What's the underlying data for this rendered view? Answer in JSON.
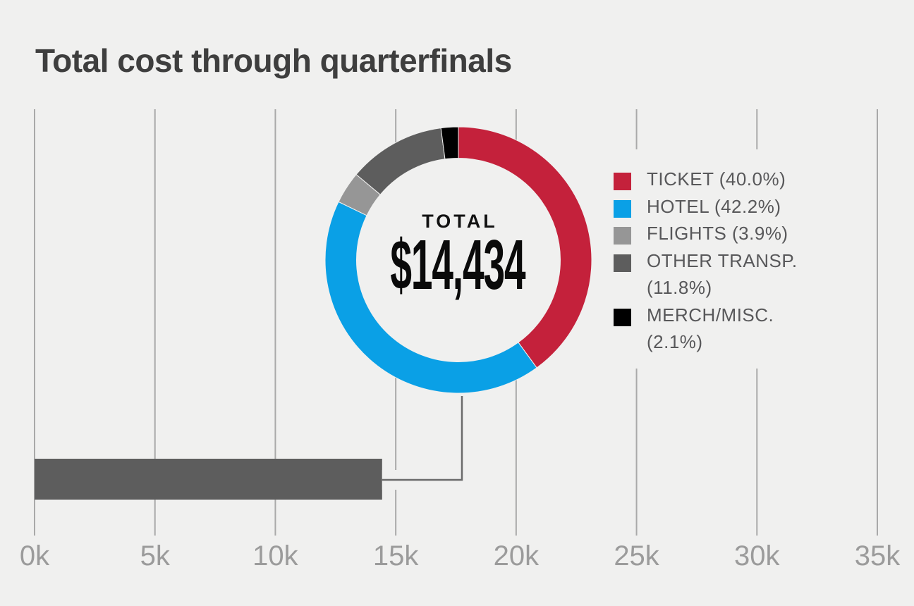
{
  "header": {
    "title": "Total cost through quarterfinals"
  },
  "colors": {
    "background": "#f0f0ef",
    "title_text": "#3e3e3e",
    "gridline": "#a9a9a9",
    "axis_label": "#9b9b9b",
    "legend_text": "#58585a",
    "center_text": "#0a0a0a",
    "connector": "#6b6b6b"
  },
  "chart_data": {
    "type": "pie",
    "subtype": "donut-with-total-bar",
    "title": "Total cost through quarterfinals",
    "donut": {
      "center_label": "TOTAL",
      "center_value": "$14,434",
      "total_value": 14434,
      "direction": "clockwise",
      "start_at": "12-oclock",
      "slices": [
        {
          "label": "TICKET",
          "pct": 40.0,
          "color": "#c4213b"
        },
        {
          "label": "HOTEL",
          "pct": 42.2,
          "color": "#0aa0e6"
        },
        {
          "label": "FLIGHTS",
          "pct": 3.9,
          "color": "#969696"
        },
        {
          "label": "OTHER TRANSP.",
          "pct": 11.8,
          "color": "#5d5d5d"
        },
        {
          "label": "MERCH/MISC.",
          "pct": 2.1,
          "color": "#000000"
        }
      ]
    },
    "bar": {
      "label": "Total cost",
      "value": 14434,
      "color": "#5d5d5d",
      "axis": {
        "min": 0,
        "max": 35000,
        "tick_step": 5000,
        "tick_labels": [
          "0k",
          "5k",
          "10k",
          "15k",
          "20k",
          "25k",
          "30k",
          "35k"
        ],
        "grid": true
      }
    },
    "legend": {
      "position": "right",
      "items": [
        {
          "swatch_color": "#c4213b",
          "lines": [
            "TICKET (40.0%)"
          ]
        },
        {
          "swatch_color": "#0aa0e6",
          "lines": [
            "HOTEL (42.2%)"
          ]
        },
        {
          "swatch_color": "#969696",
          "lines": [
            "FLIGHTS (3.9%)"
          ]
        },
        {
          "swatch_color": "#5d5d5d",
          "lines": [
            "OTHER TRANSP.",
            "(11.8%)"
          ]
        },
        {
          "swatch_color": "#000000",
          "lines": [
            "MERCH/MISC.",
            "(2.1%)"
          ]
        }
      ]
    }
  }
}
